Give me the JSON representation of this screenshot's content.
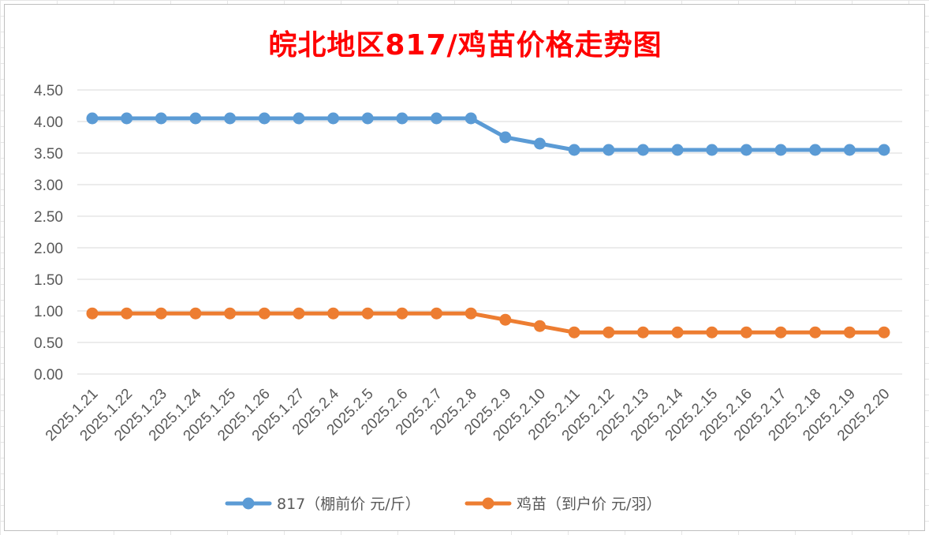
{
  "chart_data": {
    "type": "line",
    "title": "皖北地区817/鸡苗价格走势图",
    "xlabel": "",
    "ylabel": "",
    "categories": [
      "2025.1.21",
      "2025.1.22",
      "2025.1.23",
      "2025.1.24",
      "2025.1.25",
      "2025.1.26",
      "2025.1.27",
      "2025.2.4",
      "2025.2.5",
      "2025.2.6",
      "2025.2.7",
      "2025.2.8",
      "2025.2.9",
      "2025.2.10",
      "2025.2.11",
      "2025.2.12",
      "2025.2.13",
      "2025.2.14",
      "2025.2.15",
      "2025.2.16",
      "2025.2.17",
      "2025.2.18",
      "2025.2.19",
      "2025.2.20"
    ],
    "ylim": [
      0,
      4.5
    ],
    "yticks": [
      "0.00",
      "0.50",
      "1.00",
      "1.50",
      "2.00",
      "2.50",
      "3.00",
      "3.50",
      "4.00",
      "4.50"
    ],
    "grid": true,
    "legend_position": "bottom",
    "series": [
      {
        "name": "817（棚前价 元/斤）",
        "color": "#5b9bd5",
        "values": [
          4.05,
          4.05,
          4.05,
          4.05,
          4.05,
          4.05,
          4.05,
          4.05,
          4.05,
          4.05,
          4.05,
          4.05,
          3.75,
          3.65,
          3.55,
          3.55,
          3.55,
          3.55,
          3.55,
          3.55,
          3.55,
          3.55,
          3.55,
          3.55
        ]
      },
      {
        "name": "鸡苗（到户价 元/羽）",
        "color": "#ed7d31",
        "values": [
          0.96,
          0.96,
          0.96,
          0.96,
          0.96,
          0.96,
          0.96,
          0.96,
          0.96,
          0.96,
          0.96,
          0.96,
          0.86,
          0.76,
          0.66,
          0.66,
          0.66,
          0.66,
          0.66,
          0.66,
          0.66,
          0.66,
          0.66,
          0.66
        ]
      }
    ]
  }
}
